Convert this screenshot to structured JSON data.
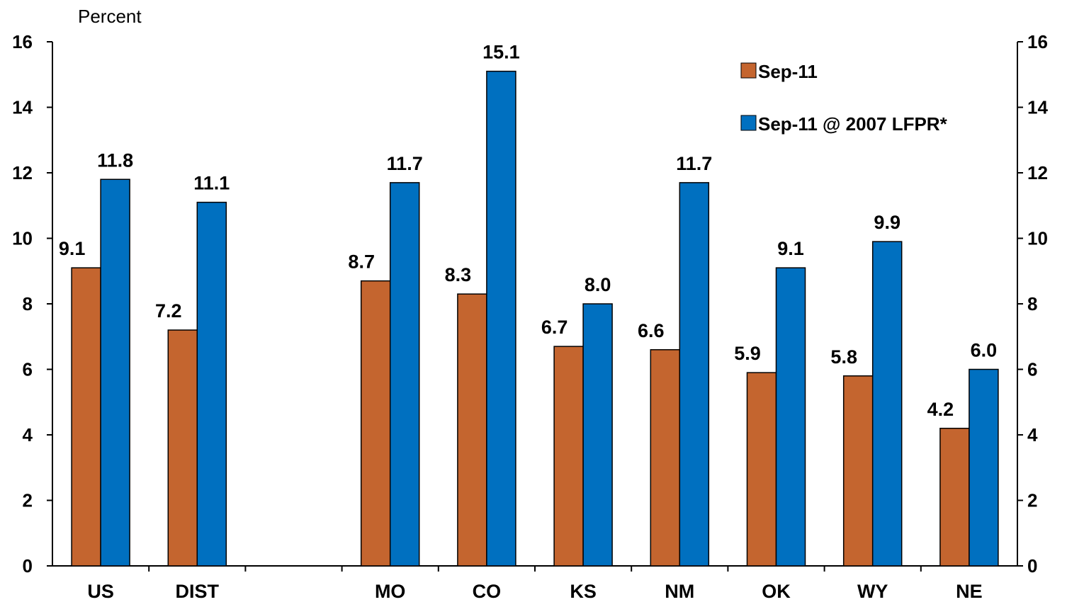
{
  "chart_data": {
    "type": "bar",
    "ylabel": "Percent",
    "ylim": [
      0,
      16
    ],
    "yticks": [
      0,
      2,
      4,
      6,
      8,
      10,
      12,
      14,
      16
    ],
    "secondary_axis": true,
    "categories": [
      "US",
      "DIST",
      "",
      "MO",
      "CO",
      "KS",
      "NM",
      "OK",
      "WY",
      "NE"
    ],
    "series": [
      {
        "name": "Sep-11",
        "color": "#c4652f",
        "values": [
          9.1,
          7.2,
          null,
          8.7,
          8.3,
          6.7,
          6.6,
          5.9,
          5.8,
          4.2
        ],
        "labels": [
          "9.1",
          "7.2",
          "",
          "8.7",
          "8.3",
          "6.7",
          "6.6",
          "5.9",
          "5.8",
          "4.2"
        ]
      },
      {
        "name": "Sep-11 @ 2007 LFPR*",
        "color": "#0070c0",
        "values": [
          11.8,
          11.1,
          null,
          11.7,
          15.1,
          8.0,
          11.7,
          9.1,
          9.9,
          6.0
        ],
        "labels": [
          "11.8",
          "11.1",
          "",
          "11.7",
          "15.1",
          "8.0",
          "11.7",
          "9.1",
          "9.9",
          "6.0"
        ]
      }
    ],
    "legend": "top-right",
    "grid": false
  }
}
